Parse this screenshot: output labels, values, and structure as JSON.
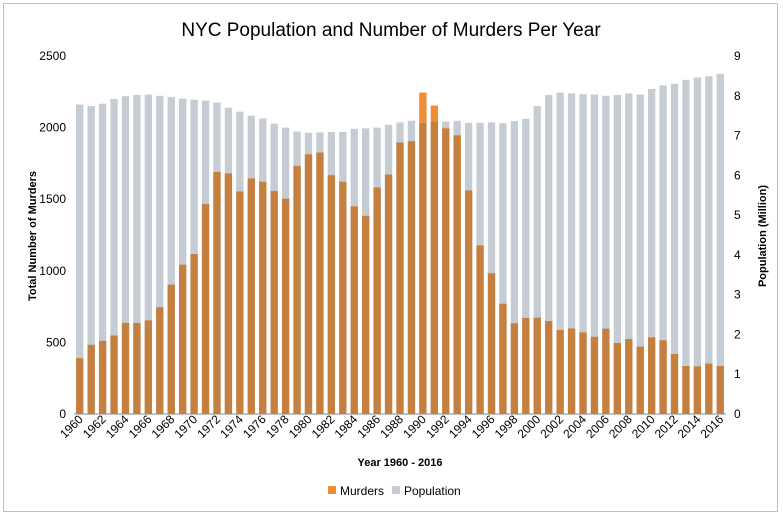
{
  "chart_data": {
    "type": "bar",
    "title": "NYC Population and Number of Murders Per Year",
    "xlabel": "Year 1960 - 2016",
    "ylabel_left": "Total Number of Murders",
    "ylabel_right": "Population (Million)",
    "ylim_left": [
      0,
      2500
    ],
    "ylim_right": [
      0,
      9
    ],
    "yticks_left": [
      "0",
      "500",
      "1000",
      "1500",
      "2000",
      "2500"
    ],
    "yticks_right": [
      "0",
      "1",
      "2",
      "3",
      "4",
      "5",
      "6",
      "7",
      "8",
      "9"
    ],
    "xtick_labels": [
      "1960",
      "1962",
      "1964",
      "1966",
      "1968",
      "1970",
      "1972",
      "1974",
      "1976",
      "1978",
      "1980",
      "1982",
      "1984",
      "1986",
      "1988",
      "1990",
      "1992",
      "1994",
      "1996",
      "1998",
      "2000",
      "2002",
      "2004",
      "2006",
      "2008",
      "2010",
      "2012",
      "2014",
      "2016"
    ],
    "legend_position": "bottom",
    "years": [
      1960,
      1961,
      1962,
      1963,
      1964,
      1965,
      1966,
      1967,
      1968,
      1969,
      1970,
      1971,
      1972,
      1973,
      1974,
      1975,
      1976,
      1977,
      1978,
      1979,
      1980,
      1981,
      1982,
      1983,
      1984,
      1985,
      1986,
      1987,
      1988,
      1989,
      1990,
      1991,
      1992,
      1993,
      1994,
      1995,
      1996,
      1997,
      1998,
      1999,
      2000,
      2001,
      2002,
      2003,
      2004,
      2005,
      2006,
      2007,
      2008,
      2009,
      2010,
      2011,
      2012,
      2013,
      2014,
      2015,
      2016
    ],
    "series": [
      {
        "name": "Murders",
        "axis": "left",
        "color": "#c5803f",
        "highlight_color": "#f08c35",
        "values": [
          390,
          483,
          510,
          548,
          636,
          636,
          654,
          746,
          904,
          1043,
          1117,
          1466,
          1691,
          1680,
          1554,
          1645,
          1622,
          1557,
          1504,
          1733,
          1814,
          1826,
          1668,
          1622,
          1450,
          1384,
          1582,
          1672,
          1896,
          1905,
          2245,
          2154,
          1995,
          1946,
          1561,
          1177,
          983,
          770,
          633,
          671,
          673,
          649,
          587,
          597,
          570,
          539,
          596,
          496,
          523,
          471,
          536,
          515,
          419,
          335,
          333,
          352,
          335
        ]
      },
      {
        "name": "Population",
        "axis": "right",
        "color": "#c5ccd4",
        "values": [
          7.78,
          7.74,
          7.8,
          7.92,
          7.99,
          8.02,
          8.03,
          8.0,
          7.97,
          7.93,
          7.9,
          7.88,
          7.83,
          7.7,
          7.6,
          7.5,
          7.43,
          7.3,
          7.2,
          7.1,
          7.07,
          7.08,
          7.09,
          7.09,
          7.17,
          7.18,
          7.2,
          7.27,
          7.33,
          7.37,
          7.32,
          7.35,
          7.35,
          7.37,
          7.32,
          7.32,
          7.33,
          7.31,
          7.36,
          7.42,
          7.74,
          8.02,
          8.08,
          8.06,
          8.04,
          8.03,
          8.0,
          8.02,
          8.06,
          8.03,
          8.17,
          8.26,
          8.3,
          8.4,
          8.46,
          8.49,
          8.55
        ]
      }
    ]
  }
}
